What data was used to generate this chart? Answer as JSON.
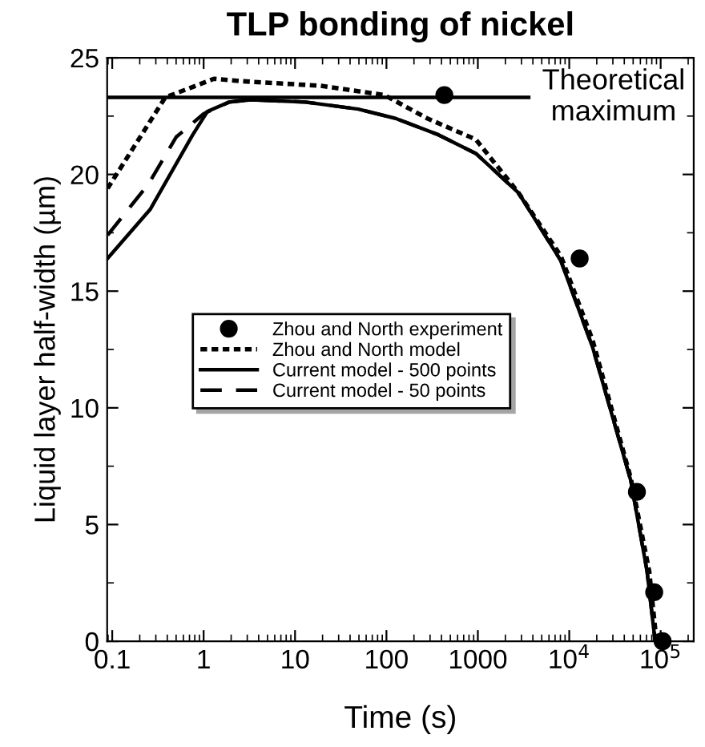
{
  "chart_data": {
    "type": "line",
    "title": "TLP bonding of nickel",
    "xlabel": "Time (s)",
    "ylabel": "Liquid layer half-width (µm)",
    "log": "x",
    "xlim": [
      0.088,
      230000
    ],
    "xticks": [
      0.1,
      1,
      10,
      100,
      1000,
      {
        "value": 10000,
        "label": "10$^{4}$"
      },
      {
        "value": 100000,
        "label": "10$^{5}$"
      }
    ],
    "ylim": [
      0,
      25
    ],
    "yticks": [
      0,
      5,
      10,
      15,
      20,
      25
    ],
    "grid": false,
    "legend": "center left",
    "series": [
      {
        "name": "Zhou and North experiment",
        "type": "scatter",
        "marker": "circle",
        "color": "#000000",
        "x": [
          430,
          13000,
          55000,
          85000,
          105000
        ],
        "values": [
          23.4,
          16.4,
          6.4,
          2.1,
          0
        ]
      },
      {
        "name": "Zhou and North model",
        "line_style": "dotted",
        "color": "#000000",
        "x": [
          0.089,
          0.38,
          1.3,
          2.5,
          19,
          95,
          280,
          950,
          2800,
          8100,
          18000,
          47000,
          75000,
          90000
        ],
        "values": [
          19.4,
          23.3,
          24.1,
          24.0,
          23.8,
          23.4,
          22.4,
          21.5,
          19.2,
          16.5,
          12.9,
          7.0,
          3.0,
          0
        ]
      },
      {
        "name": "Current model - 500 points",
        "line_style": "solid",
        "color": "#000000",
        "x": [
          0.089,
          0.26,
          0.76,
          1.1,
          1.9,
          3.3,
          13,
          49,
          126,
          370,
          950,
          2800,
          8100,
          18000,
          47000,
          71000,
          87000
        ],
        "values": [
          16.4,
          18.5,
          21.7,
          22.7,
          23.1,
          23.2,
          23.1,
          22.8,
          22.4,
          21.7,
          20.9,
          19.2,
          16.3,
          12.6,
          6.9,
          3.0,
          0
        ]
      },
      {
        "name": "Current model - 50 points",
        "line_style": "dashed",
        "color": "#000000",
        "x": [
          0.089,
          0.25,
          0.5,
          1,
          1.9,
          3.3,
          13,
          49,
          126,
          370,
          950,
          2800,
          8100,
          18000,
          47000,
          71000,
          87000
        ],
        "values": [
          17.4,
          19.6,
          21.6,
          22.6,
          23.1,
          23.2,
          23.1,
          22.8,
          22.4,
          21.7,
          20.9,
          19.2,
          16.3,
          12.6,
          6.9,
          3.0,
          0
        ]
      },
      {
        "line_style": "solid",
        "color": "#000000",
        "x": [
          0.088,
          3600
        ],
        "values": [
          23.3,
          23.3
        ]
      }
    ],
    "annotations": [
      {
        "text": "Theoretical\nmaximum",
        "x": 3600,
        "y": 23.3
      }
    ]
  }
}
